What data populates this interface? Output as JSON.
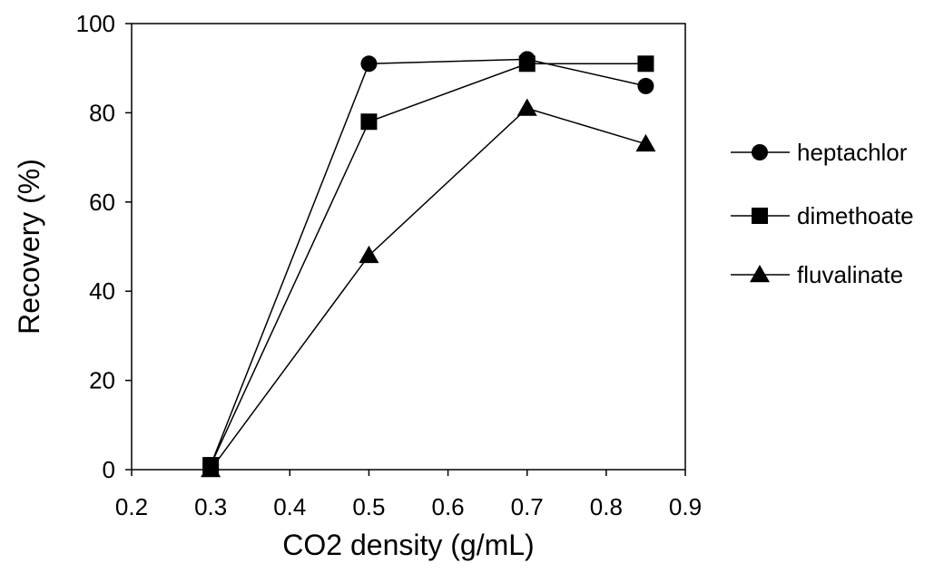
{
  "chart_data": {
    "type": "line",
    "title": "",
    "xlabel": "CO2 density (g/mL)",
    "ylabel": "Recovery (%)",
    "xlim": [
      0.2,
      0.9
    ],
    "ylim": [
      0,
      100
    ],
    "x_ticks": [
      "0.2",
      "0.3",
      "0.4",
      "0.5",
      "0.6",
      "0.7",
      "0.8",
      "0.9"
    ],
    "y_ticks": [
      "0",
      "20",
      "40",
      "60",
      "80",
      "100"
    ],
    "grid": false,
    "legend_position": "right",
    "series": [
      {
        "name": "heptachlor",
        "marker": "circle",
        "color": "#000000",
        "points": [
          [
            0.3,
            1
          ],
          [
            0.5,
            91
          ],
          [
            0.7,
            92
          ],
          [
            0.85,
            86
          ]
        ]
      },
      {
        "name": "dimethoate",
        "marker": "square",
        "color": "#000000",
        "points": [
          [
            0.3,
            1
          ],
          [
            0.5,
            78
          ],
          [
            0.7,
            91
          ],
          [
            0.85,
            91
          ]
        ]
      },
      {
        "name": "fluvalinate",
        "marker": "triangle",
        "color": "#000000",
        "points": [
          [
            0.3,
            0
          ],
          [
            0.5,
            48
          ],
          [
            0.7,
            81
          ],
          [
            0.85,
            73
          ]
        ]
      }
    ]
  }
}
